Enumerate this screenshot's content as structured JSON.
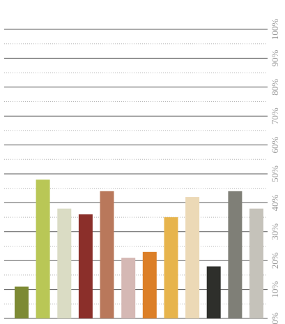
{
  "chart_data": {
    "type": "bar",
    "title": "",
    "xlabel": "",
    "ylabel": "",
    "ylim": [
      0,
      100
    ],
    "y_ticks": [
      "0%",
      "10%",
      "20%",
      "30%",
      "40%",
      "50%",
      "60%",
      "70%",
      "80%",
      "90%",
      "100%"
    ],
    "y_axis_position": "right",
    "grid": true,
    "legend": "none",
    "categories": [
      "",
      "",
      "",
      "",
      "",
      "",
      "",
      "",
      "",
      "",
      "",
      ""
    ],
    "values": [
      11,
      48,
      38,
      36,
      44,
      21,
      23,
      35,
      42,
      18,
      44,
      38
    ],
    "colors": [
      "#7d8a34",
      "#b9c756",
      "#dadcc4",
      "#8b2f2a",
      "#b9785b",
      "#d5b8b4",
      "#dc7f27",
      "#e7b44c",
      "#ecd9b6",
      "#2e2f2b",
      "#7f7f77",
      "#c5c2ba"
    ]
  }
}
